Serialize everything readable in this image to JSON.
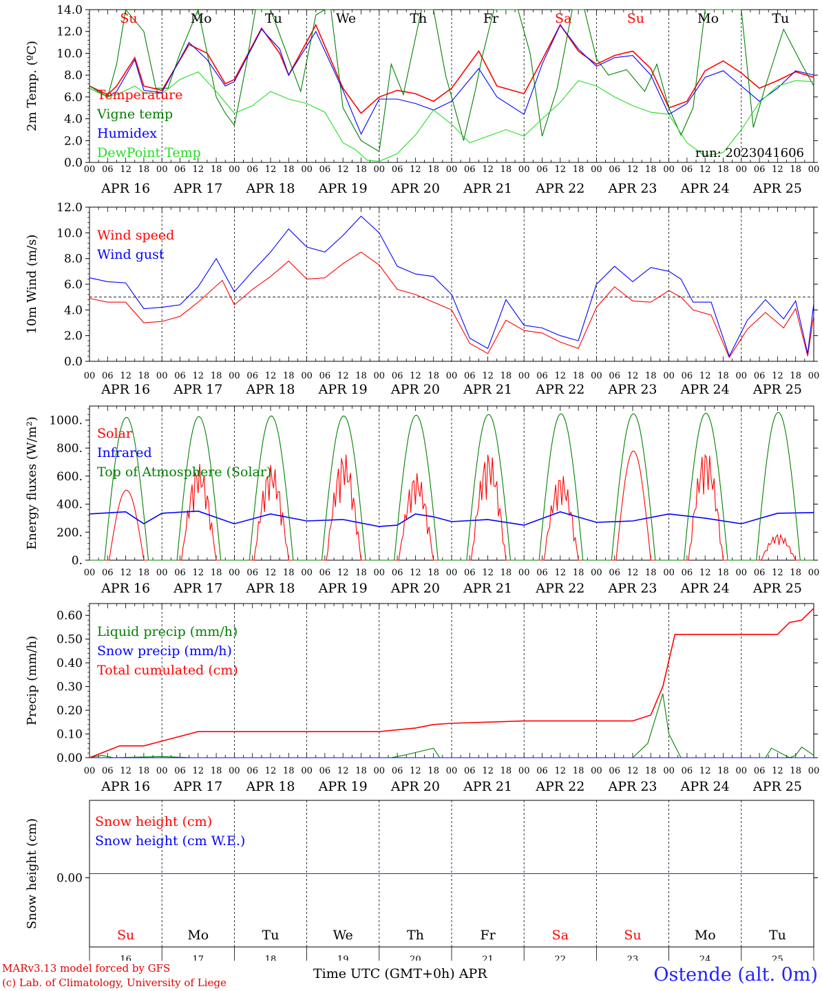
{
  "colors": {
    "red": "#ff0000",
    "green": "#008000",
    "blue": "#0000ff",
    "lightgreen": "#22dd22",
    "purple": "#8000a0"
  },
  "days": {
    "labels": [
      "APR 16",
      "APR 17",
      "APR 18",
      "APR 19",
      "APR 20",
      "APR 21",
      "APR 22",
      "APR 23",
      "APR 24",
      "APR 25"
    ],
    "weekdays": [
      "Su",
      "Mo",
      "Tu",
      "We",
      "Th",
      "Fr",
      "Sa",
      "Su",
      "Mo",
      "Tu"
    ],
    "weekday_colors": [
      "red",
      "black",
      "black",
      "black",
      "black",
      "black",
      "red",
      "red",
      "black",
      "black"
    ],
    "numbers": [
      "16",
      "17",
      "18",
      "19",
      "20",
      "21",
      "22",
      "23",
      "24",
      "25"
    ],
    "hour_ticks": [
      "00",
      "06",
      "12",
      "18"
    ],
    "final_tick": "00"
  },
  "footer": {
    "credit_line1": "MARv3.13 model forced by GFS",
    "credit_line2": "(c) Lab. of Climatology, University of Liege",
    "x_title": "Time UTC (GMT+0h) APR",
    "station": "Ostende (alt. 0m)"
  },
  "chart_data": [
    {
      "type": "line",
      "ylabel": "2m Temp. (ºC)",
      "ylim": [
        0,
        14
      ],
      "yticks": [
        "0.0",
        "2.0",
        "4.0",
        "6.0",
        "8.0",
        "10.0",
        "12.0",
        "14.0"
      ],
      "x_unit": "hours since 2023-04-16 00 UTC",
      "annotation": "run: 2023041606",
      "legend": [
        "Temperature",
        "Vigne temp",
        "Humidex",
        "DewPoint Temp"
      ],
      "series": [
        {
          "name": "Temperature",
          "color": "red",
          "x": [
            0,
            6,
            9,
            15,
            18,
            24,
            33,
            39,
            45,
            48,
            57,
            63,
            66,
            75,
            84,
            90,
            96,
            102,
            108,
            114,
            120,
            129,
            135,
            144,
            150,
            156,
            162,
            168,
            174,
            180,
            186,
            192,
            198,
            204,
            210,
            216,
            222,
            228,
            234,
            240
          ],
          "y": [
            7.0,
            6.2,
            7.0,
            9.6,
            7.0,
            6.6,
            10.8,
            10.0,
            7.2,
            7.6,
            12.3,
            10.0,
            8.0,
            12.6,
            6.8,
            4.5,
            6.0,
            6.6,
            6.3,
            5.6,
            6.8,
            10.2,
            7.0,
            6.3,
            9.4,
            12.6,
            10.2,
            9.0,
            9.8,
            10.2,
            8.6,
            5.0,
            5.6,
            8.4,
            9.3,
            8.2,
            6.8,
            7.5,
            8.3,
            7.8
          ]
        },
        {
          "name": "Vigne temp",
          "color": "green",
          "x": [
            0,
            6,
            9,
            12,
            18,
            22,
            26,
            30,
            36,
            42,
            45,
            48,
            52,
            55,
            60,
            66,
            70,
            75,
            78,
            80,
            84,
            90,
            96,
            100,
            104,
            110,
            114,
            118,
            124,
            128,
            130,
            134,
            138,
            142,
            146,
            150,
            155,
            160,
            164,
            168,
            172,
            178,
            184,
            188,
            192,
            196,
            200,
            204,
            208,
            212,
            216,
            220,
            224,
            230,
            236,
            240
          ],
          "y": [
            7.0,
            6.0,
            9.0,
            14.0,
            12.0,
            6.8,
            6.8,
            10.0,
            14.0,
            6.0,
            4.5,
            3.4,
            9.0,
            14.0,
            14.0,
            9.5,
            6.5,
            13.5,
            14.0,
            14.0,
            5.0,
            2.0,
            1.0,
            9.0,
            6.2,
            14.0,
            14.0,
            8.0,
            2.0,
            6.8,
            9.5,
            14.0,
            14.0,
            14.0,
            10.0,
            2.4,
            6.8,
            14.0,
            14.0,
            9.5,
            8.0,
            8.5,
            6.5,
            9.0,
            5.0,
            2.5,
            5.0,
            14.0,
            14.0,
            14.0,
            14.0,
            3.2,
            7.0,
            12.2,
            9.0,
            7.0
          ]
        },
        {
          "name": "Humidex",
          "color": "blue",
          "x": [
            0,
            6,
            9,
            15,
            18,
            24,
            33,
            39,
            45,
            48,
            57,
            63,
            66,
            75,
            84,
            90,
            96,
            102,
            108,
            114,
            120,
            129,
            135,
            144,
            150,
            156,
            162,
            168,
            174,
            180,
            186,
            192,
            198,
            204,
            210,
            216,
            222,
            228,
            234,
            240
          ],
          "y": [
            6.8,
            6.0,
            6.5,
            9.4,
            6.6,
            6.4,
            11.0,
            9.4,
            7.0,
            7.4,
            12.2,
            10.4,
            8.0,
            12.0,
            6.6,
            2.6,
            5.8,
            5.8,
            5.4,
            4.8,
            5.6,
            8.6,
            6.0,
            4.4,
            9.0,
            12.6,
            10.4,
            8.8,
            9.6,
            9.8,
            8.0,
            4.4,
            5.4,
            7.8,
            8.4,
            7.0,
            5.6,
            6.8,
            8.4,
            8.0
          ]
        },
        {
          "name": "DewPoint Temp",
          "color": "lightgreen",
          "x": [
            0,
            6,
            9,
            15,
            18,
            24,
            30,
            36,
            42,
            48,
            54,
            60,
            66,
            72,
            78,
            84,
            88,
            92,
            96,
            102,
            108,
            114,
            120,
            126,
            132,
            138,
            144,
            150,
            156,
            162,
            168,
            174,
            180,
            186,
            192,
            198,
            204,
            210,
            216,
            222,
            228,
            234,
            240
          ],
          "y": [
            6.8,
            6.0,
            6.2,
            7.0,
            6.4,
            6.3,
            7.6,
            8.3,
            6.5,
            4.5,
            5.2,
            6.5,
            5.8,
            5.4,
            4.6,
            1.8,
            1.2,
            0.2,
            0.1,
            0.8,
            2.5,
            4.8,
            3.5,
            1.8,
            2.4,
            3.0,
            2.4,
            4.0,
            5.5,
            7.5,
            7.0,
            6.0,
            5.2,
            4.6,
            4.4,
            1.8,
            0.6,
            0.9,
            3.0,
            5.5,
            7.0,
            7.5,
            7.4
          ]
        }
      ]
    },
    {
      "type": "line",
      "ylabel": "10m Wind (m/s)",
      "ylim": [
        0,
        12
      ],
      "yticks": [
        "0.0",
        "2.0",
        "4.0",
        "6.0",
        "8.0",
        "10.0",
        "12.0"
      ],
      "reference_line": 5.0,
      "legend": [
        "Wind speed",
        "Wind gust"
      ],
      "series": [
        {
          "name": "Wind speed",
          "color": "red",
          "x": [
            0,
            6,
            12,
            18,
            24,
            30,
            36,
            44,
            48,
            54,
            60,
            66,
            72,
            78,
            84,
            90,
            96,
            102,
            108,
            114,
            120,
            126,
            132,
            138,
            144,
            150,
            156,
            162,
            168,
            174,
            180,
            186,
            192,
            196,
            200,
            206,
            212,
            218,
            224,
            230,
            234,
            238,
            240
          ],
          "y": [
            4.9,
            4.6,
            4.6,
            3.0,
            3.1,
            3.5,
            4.6,
            6.3,
            4.4,
            5.6,
            6.6,
            7.8,
            6.4,
            6.5,
            7.6,
            8.5,
            7.5,
            5.6,
            5.2,
            4.6,
            4.0,
            1.4,
            0.6,
            3.2,
            2.4,
            2.2,
            1.5,
            1.0,
            4.2,
            5.8,
            4.7,
            4.6,
            5.5,
            5.0,
            4.0,
            3.6,
            0.3,
            2.5,
            3.8,
            2.6,
            4.1,
            0.4,
            3.6
          ]
        },
        {
          "name": "Wind gust",
          "color": "blue",
          "x": [
            0,
            6,
            12,
            18,
            24,
            30,
            36,
            42,
            48,
            54,
            60,
            66,
            72,
            78,
            84,
            90,
            96,
            102,
            108,
            114,
            120,
            126,
            132,
            138,
            144,
            150,
            156,
            162,
            168,
            174,
            180,
            186,
            192,
            196,
            200,
            206,
            212,
            218,
            224,
            230,
            234,
            238,
            240
          ],
          "y": [
            6.5,
            6.2,
            6.1,
            4.1,
            4.2,
            4.4,
            5.8,
            8.0,
            5.4,
            7.0,
            8.5,
            10.3,
            8.9,
            8.5,
            9.8,
            11.3,
            10.0,
            7.4,
            6.8,
            6.6,
            5.2,
            1.8,
            1.0,
            4.8,
            2.8,
            2.6,
            2.0,
            1.6,
            6.0,
            7.4,
            6.2,
            7.3,
            7.0,
            6.4,
            4.6,
            4.6,
            0.4,
            3.2,
            4.8,
            3.3,
            4.7,
            0.6,
            4.5
          ]
        }
      ]
    },
    {
      "type": "line",
      "ylabel": "Energy fluxes (W/m²)",
      "ylim": [
        0,
        1100
      ],
      "yticks": [
        "0.",
        "200.",
        "400.",
        "600.",
        "800.",
        "1000."
      ],
      "legend": [
        "Solar",
        "Infrared",
        "Top of Atmosphere (Solar)"
      ],
      "series": [
        {
          "name": "Solar",
          "color": "red",
          "daily_peak": [
            500,
            690,
            690,
            770,
            630,
            780,
            620,
            780,
            800,
            190
          ]
        },
        {
          "name": "Infrared",
          "color": "blue",
          "x": [
            0,
            12,
            18,
            24,
            36,
            48,
            60,
            72,
            84,
            96,
            102,
            108,
            114,
            120,
            132,
            144,
            156,
            168,
            180,
            192,
            204,
            216,
            228,
            240
          ],
          "y": [
            330,
            345,
            260,
            335,
            350,
            260,
            330,
            280,
            290,
            240,
            250,
            330,
            310,
            275,
            290,
            250,
            345,
            270,
            280,
            330,
            300,
            260,
            335,
            340
          ]
        },
        {
          "name": "Top of Atmosphere (Solar)",
          "color": "green",
          "daily_peak": [
            1020,
            1025,
            1030,
            1030,
            1035,
            1040,
            1045,
            1045,
            1050,
            1055
          ]
        }
      ]
    },
    {
      "type": "line",
      "ylabel": "Precip (mm/h)",
      "ylim": [
        0,
        0.65
      ],
      "yticks": [
        "0.00",
        "0.10",
        "0.20",
        "0.30",
        "0.40",
        "0.50",
        "0.60"
      ],
      "legend": [
        "Liquid precip (mm/h)",
        "Snow precip (mm/h)",
        "Total cumulated (cm)"
      ],
      "series": [
        {
          "name": "Liquid precip (mm/h)",
          "color": "green",
          "x": [
            0,
            4,
            8,
            24,
            34,
            100,
            104,
            114,
            116,
            120,
            180,
            185,
            190,
            192,
            196,
            206,
            224,
            226,
            232,
            234,
            236,
            240
          ],
          "y": [
            0,
            0.01,
            0,
            0.005,
            0,
            0,
            0.01,
            0.04,
            0,
            0,
            0,
            0.06,
            0.27,
            0.1,
            0,
            0,
            0,
            0.04,
            0,
            0.01,
            0.045,
            0.01
          ]
        },
        {
          "name": "Snow precip (mm/h)",
          "color": "blue",
          "x": [
            0,
            240
          ],
          "y": [
            0,
            0
          ]
        },
        {
          "name": "Total cumulated (cm)",
          "color": "red",
          "x": [
            0,
            6,
            10,
            18,
            24,
            30,
            36,
            96,
            108,
            114,
            120,
            132,
            144,
            168,
            180,
            186,
            190,
            194,
            198,
            228,
            232,
            236,
            240
          ],
          "y": [
            0,
            0.03,
            0.05,
            0.05,
            0.07,
            0.09,
            0.11,
            0.11,
            0.125,
            0.14,
            0.145,
            0.15,
            0.155,
            0.155,
            0.155,
            0.18,
            0.3,
            0.52,
            0.52,
            0.52,
            0.57,
            0.58,
            0.63
          ]
        }
      ]
    },
    {
      "type": "line",
      "ylabel": "Snow height (cm)",
      "yticks": [
        "0.00"
      ],
      "legend": [
        "Snow height (cm)",
        "Snow height (cm W.E.)"
      ],
      "series": [
        {
          "name": "Snow height (cm)",
          "color": "red",
          "x": [
            0,
            240
          ],
          "y": [
            0,
            0
          ]
        },
        {
          "name": "Snow height (cm W.E.)",
          "color": "blue",
          "x": [
            0,
            240
          ],
          "y": [
            0,
            0
          ]
        }
      ]
    }
  ]
}
